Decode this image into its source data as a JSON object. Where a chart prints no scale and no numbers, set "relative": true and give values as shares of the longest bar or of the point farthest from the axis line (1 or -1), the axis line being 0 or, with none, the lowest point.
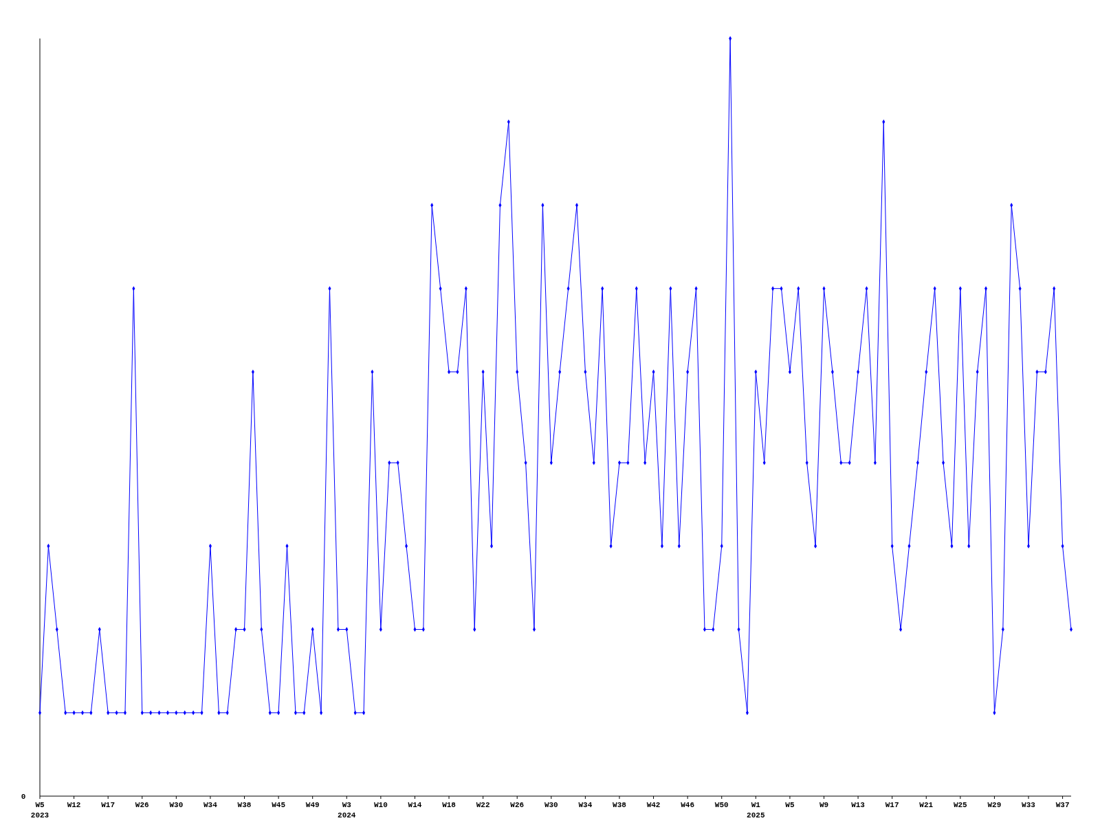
{
  "chart_data": {
    "type": "line",
    "relative": true,
    "marker": "diamond",
    "grid": false,
    "annotations": [
      "0"
    ],
    "categories": [
      "W5 2023",
      null,
      null,
      null,
      "W12",
      null,
      null,
      null,
      "W17",
      null,
      null,
      null,
      "W26",
      null,
      null,
      null,
      "W30",
      null,
      null,
      null,
      "W34",
      null,
      null,
      null,
      "W38",
      null,
      null,
      null,
      "W45",
      null,
      null,
      null,
      "W49",
      null,
      null,
      null,
      "W3 2024",
      null,
      null,
      null,
      "W10",
      null,
      null,
      null,
      "W14",
      null,
      null,
      null,
      "W18",
      null,
      null,
      null,
      "W22",
      null,
      null,
      null,
      "W26",
      null,
      null,
      null,
      "W30",
      null,
      null,
      null,
      "W34",
      null,
      null,
      null,
      "W38",
      null,
      null,
      null,
      "W42",
      null,
      null,
      null,
      "W46",
      null,
      null,
      null,
      "W50",
      null,
      null,
      null,
      "W1 2025",
      null,
      null,
      null,
      "W5",
      null,
      null,
      null,
      "W9",
      null,
      null,
      null,
      "W13",
      null,
      null,
      null,
      "W17",
      null,
      null,
      null,
      "W21",
      null,
      null,
      null,
      "W25",
      null,
      null,
      null,
      "W29",
      null,
      null,
      null,
      "W33",
      null,
      null,
      null,
      "W37",
      null
    ],
    "series": [
      {
        "color": "#0000ff",
        "values": [
          0.11,
          0.33,
          0.22,
          0.11,
          0.11,
          0.11,
          0.11,
          0.22,
          0.11,
          0.11,
          0.11,
          0.67,
          0.11,
          0.11,
          0.11,
          0.11,
          0.11,
          0.11,
          0.11,
          0.11,
          0.33,
          0.11,
          0.11,
          0.22,
          0.22,
          0.56,
          0.22,
          0.11,
          0.11,
          0.33,
          0.11,
          0.11,
          0.22,
          0.11,
          0.67,
          0.22,
          0.22,
          0.11,
          0.11,
          0.56,
          0.22,
          0.44,
          0.44,
          0.33,
          0.22,
          0.22,
          0.78,
          0.67,
          0.56,
          0.56,
          0.67,
          0.22,
          0.56,
          0.33,
          0.78,
          0.89,
          0.56,
          0.44,
          0.22,
          0.78,
          0.44,
          0.56,
          0.67,
          0.78,
          0.56,
          0.44,
          0.67,
          0.33,
          0.44,
          0.44,
          0.67,
          0.44,
          0.56,
          0.33,
          0.67,
          0.33,
          0.56,
          0.67,
          0.22,
          0.22,
          0.33,
          1,
          0.22,
          0.11,
          0.56,
          0.44,
          0.67,
          0.67,
          0.56,
          0.67,
          0.44,
          0.33,
          0.67,
          0.56,
          0.44,
          0.44,
          0.56,
          0.67,
          0.44,
          0.89,
          0.33,
          0.22,
          0.33,
          0.44,
          0.56,
          0.67,
          0.44,
          0.33,
          0.67,
          0.33,
          0.56,
          0.67,
          0.11,
          0.22,
          0.78,
          0.67,
          0.33,
          0.56,
          0.56,
          0.67,
          0.33,
          0.22
        ]
      }
    ]
  }
}
